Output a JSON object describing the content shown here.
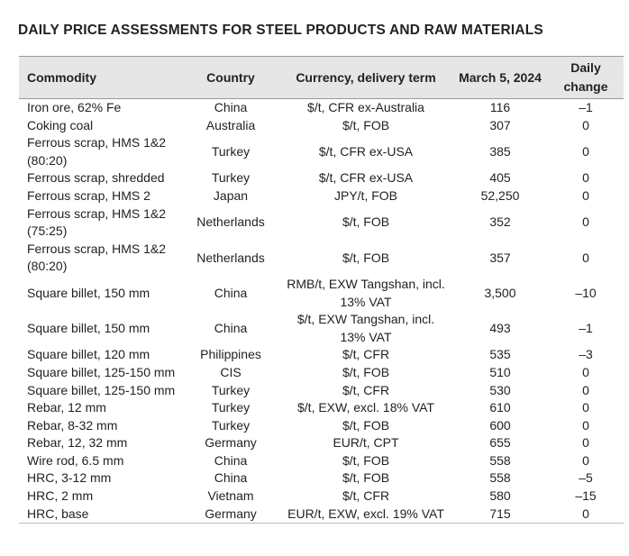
{
  "title": "DAILY PRICE ASSESSMENTS FOR STEEL PRODUCTS AND RAW MATERIALS",
  "headers": [
    "Commodity",
    "Country",
    "Currency, delivery term",
    "March 5, 2024",
    "Daily change"
  ],
  "rows": [
    [
      "Iron ore, 62% Fe",
      "China",
      "$/t, CFR ex-Australia",
      "116",
      "–1"
    ],
    [
      "Coking coal",
      "Australia",
      "$/t, FOB",
      "307",
      "0"
    ],
    [
      "Ferrous scrap, HMS 1&2 (80:20)",
      "Turkey",
      "$/t, CFR ex-USA",
      "385",
      "0"
    ],
    [
      "Ferrous scrap, shredded",
      "Turkey",
      "$/t, CFR ex-USA",
      "405",
      "0"
    ],
    [
      "Ferrous scrap, HMS 2",
      "Japan",
      "JPY/t, FOB",
      "52,250",
      "0"
    ],
    [
      "Ferrous scrap, HMS 1&2 (75:25)",
      "Netherlands",
      "$/t, FOB",
      "352",
      "0"
    ],
    [
      "Ferrous scrap, HMS 1&2 (80:20)",
      "Netherlands",
      "$/t, FOB",
      "357",
      "0"
    ],
    [
      "Square billet, 150 mm",
      "China",
      "RMB/t, EXW Tangshan, incl. 13% VAT",
      "3,500",
      "–10"
    ],
    [
      "Square billet, 150 mm",
      "China",
      "$/t, EXW Tangshan, incl. 13% VAT",
      "493",
      "–1"
    ],
    [
      "Square billet, 120 mm",
      "Philippines",
      "$/t, CFR",
      "535",
      "–3"
    ],
    [
      "Square billet, 125-150 mm",
      "CIS",
      "$/t, FOB",
      "510",
      "0"
    ],
    [
      "Square billet, 125-150 mm",
      "Turkey",
      "$/t, CFR",
      "530",
      "0"
    ],
    [
      "Rebar, 12 mm",
      "Turkey",
      "$/t, EXW, excl. 18% VAT",
      "610",
      "0"
    ],
    [
      "Rebar, 8-32 mm",
      "Turkey",
      "$/t, FOB",
      "600",
      "0"
    ],
    [
      "Rebar, 12, 32 mm",
      "Germany",
      "EUR/t, CPT",
      "655",
      "0"
    ],
    [
      "Wire rod, 6.5 mm",
      "China",
      "$/t, FOB",
      "558",
      "0"
    ],
    [
      "HRC, 3-12 mm",
      "China",
      "$/t, FOB",
      "558",
      "–5"
    ],
    [
      "HRC, 2 mm",
      "Vietnam",
      "$/t, CFR",
      "580",
      "–15"
    ],
    [
      "HRC, base",
      "Germany",
      "EUR/t, EXW, excl. 19% VAT",
      "715",
      "0"
    ]
  ]
}
